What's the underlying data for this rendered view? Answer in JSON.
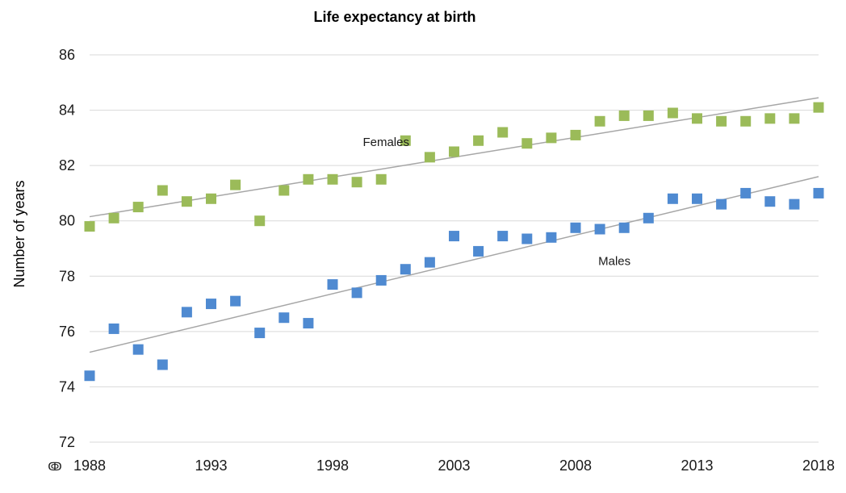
{
  "chart_data": {
    "type": "scatter",
    "title": "Life expectancy at birth",
    "xlabel": "",
    "ylabel": "Number of years",
    "xlim": [
      1988,
      2018
    ],
    "ylim": [
      72,
      86
    ],
    "xticks": [
      1988,
      1993,
      1998,
      2003,
      2008,
      2013,
      2018
    ],
    "yticks": [
      72,
      74,
      76,
      78,
      80,
      82,
      84,
      86
    ],
    "grid": true,
    "x_axis_marker": "ↂ",
    "series": [
      {
        "name": "Females",
        "color": "#9bbb59",
        "x": [
          1988,
          1989,
          1990,
          1991,
          1992,
          1993,
          1994,
          1995,
          1996,
          1997,
          1998,
          1999,
          2000,
          2001,
          2002,
          2003,
          2004,
          2005,
          2006,
          2007,
          2008,
          2009,
          2010,
          2011,
          2012,
          2013,
          2014,
          2015,
          2016,
          2017,
          2018
        ],
        "values": [
          79.8,
          80.1,
          80.5,
          81.1,
          80.7,
          80.8,
          81.3,
          80.0,
          81.1,
          81.5,
          81.5,
          81.4,
          81.5,
          82.9,
          82.3,
          82.5,
          82.9,
          83.2,
          82.8,
          83.0,
          83.1,
          83.6,
          83.8,
          83.8,
          83.9,
          83.7,
          83.6,
          83.6,
          83.7,
          83.7,
          84.1
        ],
        "trend": [
          80.15,
          84.45
        ]
      },
      {
        "name": "Males",
        "color": "#4f8ad1",
        "x": [
          1988,
          1989,
          1990,
          1991,
          1992,
          1993,
          1994,
          1995,
          1996,
          1997,
          1998,
          1999,
          2000,
          2001,
          2002,
          2003,
          2004,
          2005,
          2006,
          2007,
          2008,
          2009,
          2010,
          2011,
          2012,
          2013,
          2014,
          2015,
          2016,
          2017,
          2018
        ],
        "values": [
          74.4,
          76.1,
          75.35,
          74.8,
          76.7,
          77.0,
          77.1,
          75.95,
          76.5,
          76.3,
          77.7,
          77.4,
          77.85,
          78.25,
          78.5,
          79.45,
          78.9,
          79.45,
          79.35,
          79.4,
          79.75,
          79.7,
          79.75,
          80.1,
          80.8,
          80.8,
          80.6,
          81.0,
          80.7,
          80.6,
          81.0
        ],
        "trend": [
          75.25,
          81.6
        ]
      }
    ],
    "annotations": [
      {
        "text": "Females",
        "x": 2000.2,
        "y": 82.7
      },
      {
        "text": "Males",
        "x": 2009.6,
        "y": 78.4
      }
    ],
    "trend_color": "#a6a6a6",
    "grid_color": "#d9d9d9"
  }
}
